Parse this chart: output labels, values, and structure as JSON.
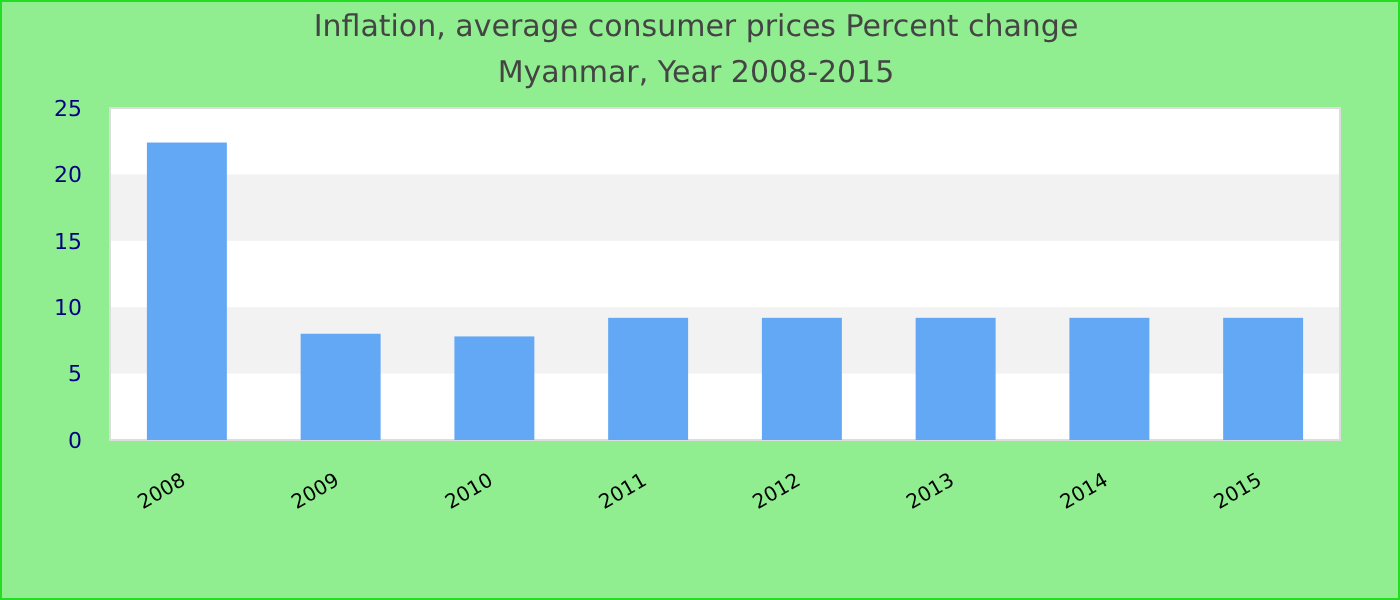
{
  "chart_data": {
    "type": "bar",
    "title": "Inflation, average consumer prices  Percent change",
    "subtitle": "Myanmar, Year 2008-2015",
    "categories": [
      "2008",
      "2009",
      "2010",
      "2011",
      "2012",
      "2013",
      "2014",
      "2015"
    ],
    "values": [
      22.4,
      8.0,
      7.8,
      9.2,
      9.2,
      9.2,
      9.2,
      9.2
    ],
    "color": "#63a8f5",
    "ylim": [
      0,
      25
    ],
    "yticks": [
      0,
      5,
      10,
      15,
      20,
      25
    ],
    "bands": [
      {
        "axis": "y",
        "from": 5,
        "to": 10,
        "color": "#f2f2f2"
      },
      {
        "axis": "y",
        "from": 15,
        "to": 20,
        "color": "#f2f2f2"
      }
    ]
  }
}
